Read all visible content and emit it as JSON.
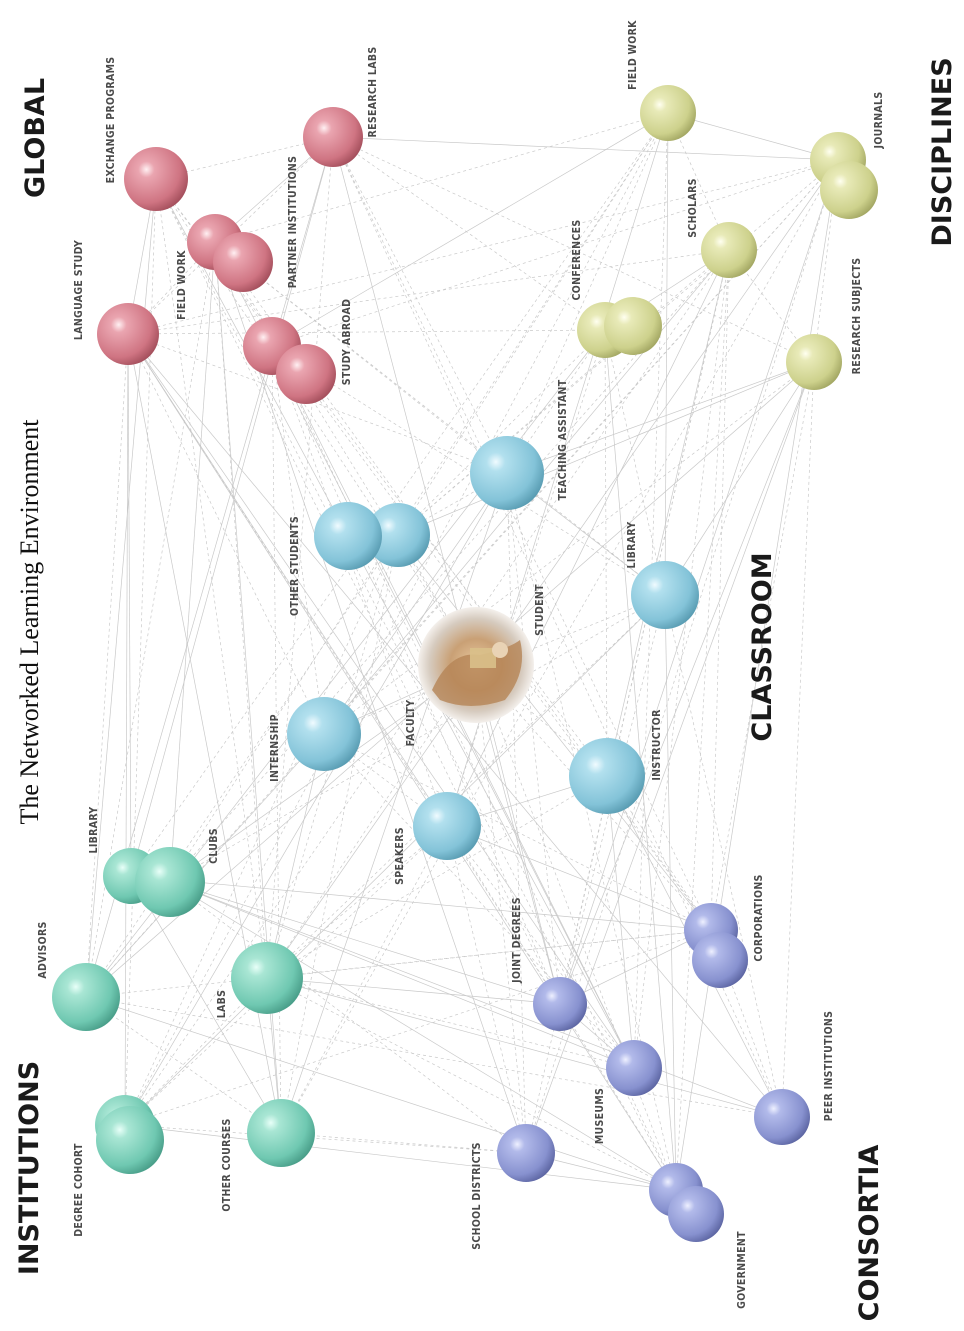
{
  "title": "The Networked Learning Environment",
  "groups": {
    "institutions": {
      "label": "INSTITUTIONS",
      "color": "#7fd1bd"
    },
    "global": {
      "label": "GLOBAL",
      "color": "#d9828f"
    },
    "classroom": {
      "label": "CLASSROOM",
      "color": "#8ecde0"
    },
    "disciplines": {
      "label": "DISCIPLINES",
      "color": "#d5d99a"
    },
    "consortia": {
      "label": "CONSORTIA",
      "color": "#8f9ad6"
    }
  },
  "center": {
    "label": "STUDENT"
  },
  "nodes": [
    {
      "id": "degree_cohort",
      "label": "DEGREE COHORT",
      "group": "institutions"
    },
    {
      "id": "other_courses",
      "label": "OTHER COURSES",
      "group": "institutions"
    },
    {
      "id": "advisors",
      "label": "ADVISORS",
      "group": "institutions"
    },
    {
      "id": "labs",
      "label": "LABS",
      "group": "institutions"
    },
    {
      "id": "library_inst",
      "label": "LIBRARY",
      "group": "institutions"
    },
    {
      "id": "clubs",
      "label": "CLUBS",
      "group": "institutions"
    },
    {
      "id": "language_study",
      "label": "LANGUAGE STUDY",
      "group": "global"
    },
    {
      "id": "field_work_global",
      "label": "FIELD WORK",
      "group": "global"
    },
    {
      "id": "exchange_programs",
      "label": "EXCHANGE PROGRAMS",
      "group": "global"
    },
    {
      "id": "partner_institutions",
      "label": "PARTNER INSTITUTIONS",
      "group": "global"
    },
    {
      "id": "study_abroad",
      "label": "STUDY ABROAD",
      "group": "global"
    },
    {
      "id": "research_labs",
      "label": "RESEARCH LABS",
      "group": "global"
    },
    {
      "id": "other_students",
      "label": "OTHER STUDENTS",
      "group": "classroom"
    },
    {
      "id": "teaching_assistant",
      "label": "TEACHING ASSISTANT",
      "group": "classroom"
    },
    {
      "id": "library_class",
      "label": "LIBRARY",
      "group": "classroom"
    },
    {
      "id": "internship",
      "label": "INTERNSHIP",
      "group": "classroom"
    },
    {
      "id": "faculty",
      "label": "FACULTY",
      "group": "classroom"
    },
    {
      "id": "speakers",
      "label": "SPEAKERS",
      "group": "classroom"
    },
    {
      "id": "instructor",
      "label": "INSTRUCTOR",
      "group": "classroom"
    },
    {
      "id": "field_work_disc",
      "label": "FIELD WORK",
      "group": "disciplines"
    },
    {
      "id": "conferences",
      "label": "CONFERENCES",
      "group": "disciplines"
    },
    {
      "id": "scholars",
      "label": "SCHOLARS",
      "group": "disciplines"
    },
    {
      "id": "journals",
      "label": "JOURNALS",
      "group": "disciplines"
    },
    {
      "id": "research_subjects",
      "label": "RESEARCH SUBJECTS",
      "group": "disciplines"
    },
    {
      "id": "school_districts",
      "label": "SCHOOL DISTRICTS",
      "group": "consortia"
    },
    {
      "id": "museums",
      "label": "MUSEUMS",
      "group": "consortia"
    },
    {
      "id": "joint_degrees",
      "label": "JOINT DEGREES",
      "group": "consortia"
    },
    {
      "id": "government",
      "label": "GOVERNMENT",
      "group": "consortia"
    },
    {
      "id": "corporations",
      "label": "CORPORATIONS",
      "group": "consortia"
    },
    {
      "id": "peer_institutions",
      "label": "PEER INSTITUTIONS",
      "group": "consortia"
    }
  ]
}
